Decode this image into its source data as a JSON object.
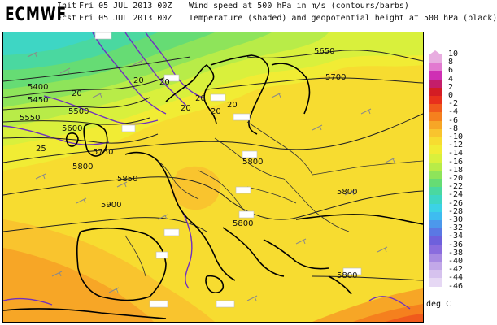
{
  "header": {
    "brand": "ECMWF",
    "init_label": "Init",
    "init_value": "Fri 05 JUL 2013 00Z",
    "fcst_label": "Fcst",
    "fcst_value": "Fri 05 JUL 2013 00Z",
    "title_line1": "Wind speed at 500 hPa in m/s (contours/barbs)",
    "title_line2": "Temperature (shaded) and geopotential height at 500 hPa (black)"
  },
  "map": {
    "height_contour_labels": [
      "5650",
      "5700",
      "5400",
      "5450",
      "5500",
      "5550",
      "5600",
      "5750",
      "5800",
      "5850",
      "5800",
      "5900",
      "5800",
      "5800",
      "5800"
    ],
    "wind_contour_labels": [
      "20",
      "20",
      "20",
      "25",
      "20",
      "20",
      "20",
      "20"
    ]
  },
  "legend": {
    "levels": [
      "10",
      "8",
      "6",
      "4",
      "2",
      "0",
      "-2",
      "-4",
      "-6",
      "-8",
      "-10",
      "-12",
      "-14",
      "-16",
      "-18",
      "-20",
      "-22",
      "-24",
      "-26",
      "-28",
      "-30",
      "-32",
      "-34",
      "-36",
      "-38",
      "-40",
      "-42",
      "-44",
      "-46"
    ],
    "colors": [
      "#e8ade0",
      "#e27ad0",
      "#cf2fb4",
      "#c41e6a",
      "#d41c24",
      "#e8301c",
      "#f05a1c",
      "#f5801e",
      "#f7a626",
      "#f9c42e",
      "#f7dc30",
      "#f1ec34",
      "#d9f03c",
      "#b8ec48",
      "#8ee45a",
      "#66dc74",
      "#4ad8a0",
      "#3ed6c4",
      "#3cd2e6",
      "#3ebcf0",
      "#4c98ec",
      "#5a78e4",
      "#6e60dc",
      "#8a6cde",
      "#a88ae2",
      "#c2a8e8",
      "#d6c2ee",
      "#e6d8f4"
    ],
    "units": "deg C"
  }
}
